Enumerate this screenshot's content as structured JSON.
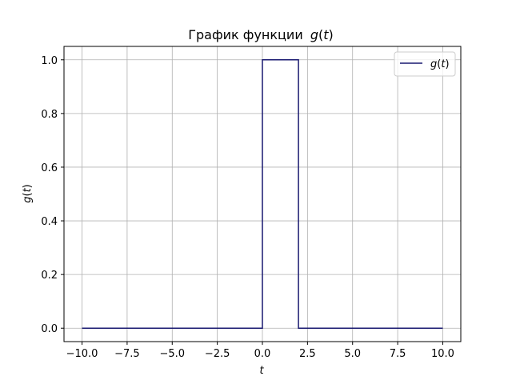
{
  "chart_data": {
    "type": "line",
    "title_prefix": "График функции",
    "title_func": "g",
    "title_arg": "t",
    "xlabel": "t",
    "ylabel_func": "g",
    "ylabel_arg": "t",
    "legend_func": "g",
    "legend_arg": "t",
    "legend_position": "top-right",
    "grid": true,
    "xlim": [
      -11,
      11
    ],
    "ylim": [
      -0.05,
      1.05
    ],
    "xticks": [
      -10,
      -7.5,
      -5,
      -2.5,
      0,
      2.5,
      5,
      7.5,
      10
    ],
    "xtick_labels": [
      "−10.0",
      "−7.5",
      "−5.0",
      "−2.5",
      "0.0",
      "2.5",
      "5.0",
      "7.5",
      "10.0"
    ],
    "yticks": [
      0,
      0.2,
      0.4,
      0.6,
      0.8,
      1.0
    ],
    "ytick_labels": [
      "0.0",
      "0.2",
      "0.4",
      "0.6",
      "0.8",
      "1.0"
    ],
    "line_color": "#191970",
    "grid_color": "#b0b0b0",
    "series": [
      {
        "x": [
          -10,
          0,
          0,
          2,
          2,
          10
        ],
        "y": [
          0,
          0,
          1,
          1,
          0,
          0
        ]
      }
    ]
  }
}
